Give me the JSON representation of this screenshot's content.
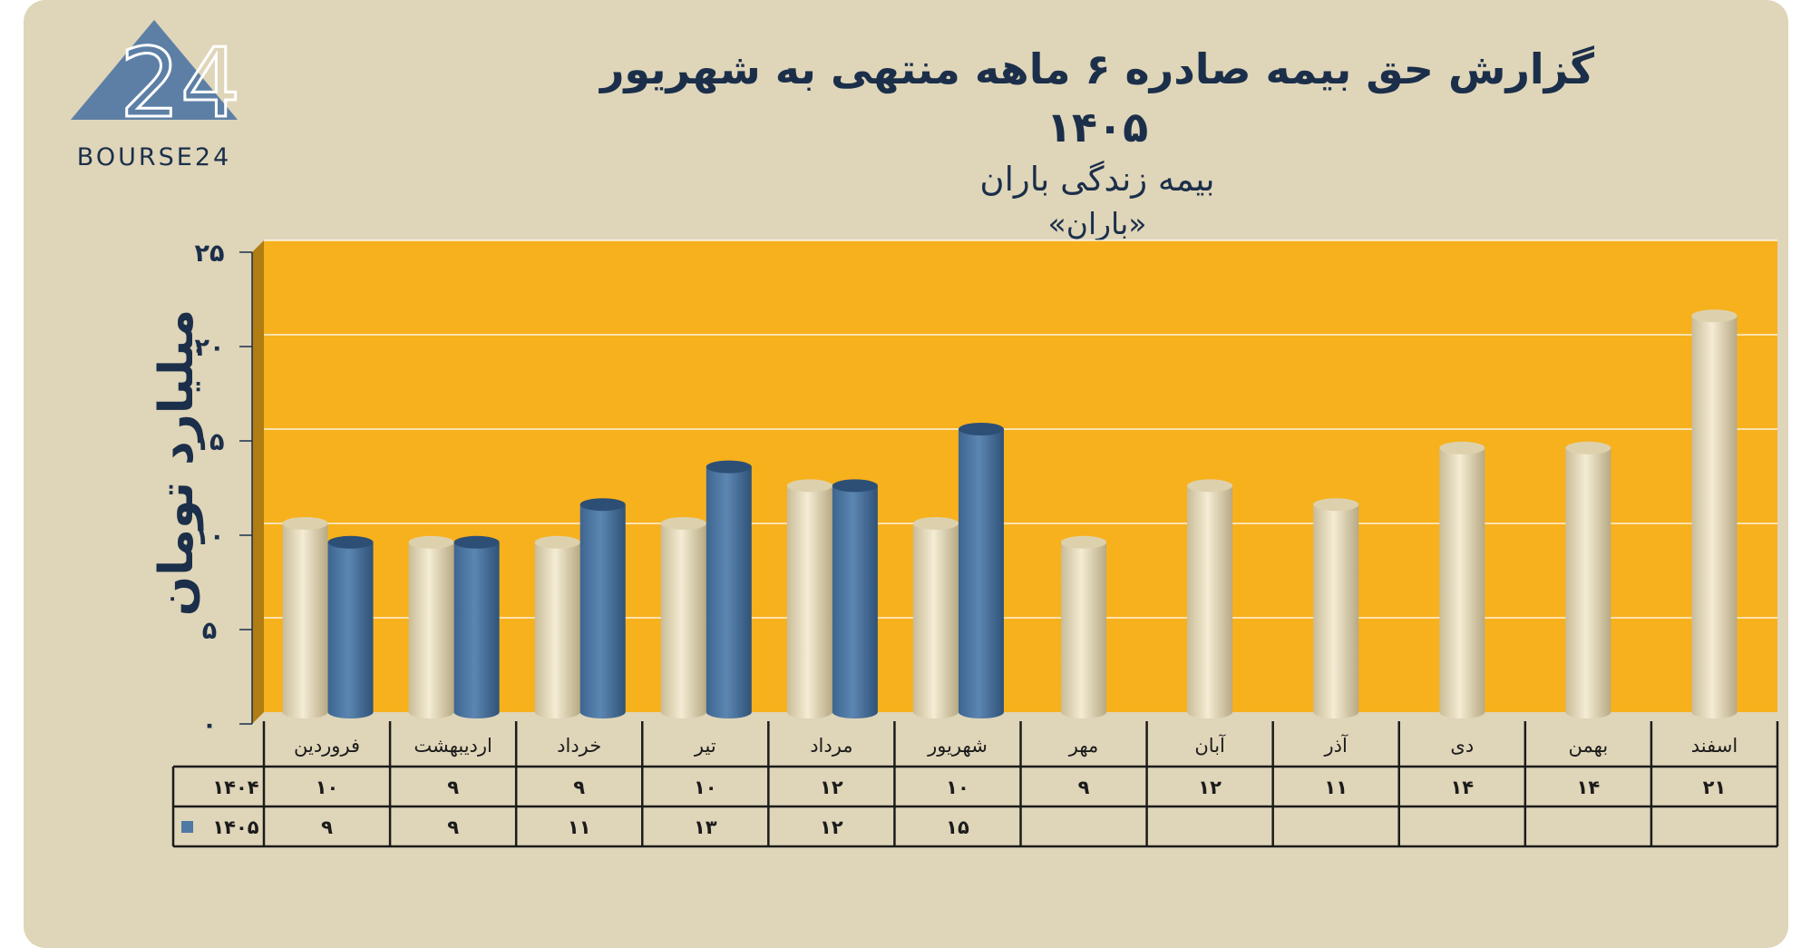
{
  "brand": {
    "logo_text": "BOURSE24"
  },
  "header": {
    "title": "گزارش  حق بیمه صادره ۶ ماهه منتهی به شهریور ۱۴۰۵",
    "subtitle": "بیمه زندگی باران",
    "subsubtitle": "«باران»"
  },
  "colors": {
    "plot_bg": "#f7b11d",
    "series_1404": "#ebe1c4",
    "series_1405": "#4f79a4",
    "card_bg": "#dfd5b9"
  },
  "chart_data": {
    "type": "bar",
    "title": "گزارش  حق بیمه صادره ۶ ماهه منتهی به شهریور ۱۴۰۵",
    "ylabel": "میلیارد تومان",
    "ylim": [
      0,
      25
    ],
    "yticks": [
      "۰",
      "۵",
      "۱۰",
      "۱۵",
      "۲۰",
      "۲۵"
    ],
    "categories": [
      "فروردین",
      "اردیبهشت",
      "خرداد",
      "تیر",
      "مرداد",
      "شهریور",
      "مهر",
      "آبان",
      "آذر",
      "دی",
      "بهمن",
      "اسفند"
    ],
    "series": [
      {
        "name": "۱۴۰۴",
        "values": [
          10,
          9,
          9,
          10,
          12,
          10,
          9,
          12,
          11,
          14,
          14,
          21
        ],
        "labels": [
          "۱۰",
          "۹",
          "۹",
          "۱۰",
          "۱۲",
          "۱۰",
          "۹",
          "۱۲",
          "۱۱",
          "۱۴",
          "۱۴",
          "۲۱"
        ]
      },
      {
        "name": "۱۴۰۵",
        "values": [
          9,
          9,
          11,
          13,
          12,
          15,
          null,
          null,
          null,
          null,
          null,
          null
        ],
        "labels": [
          "۹",
          "۹",
          "۱۱",
          "۱۳",
          "۱۲",
          "۱۵",
          "",
          "",
          "",
          "",
          "",
          ""
        ]
      }
    ],
    "grid": true,
    "legend": "data-table"
  }
}
